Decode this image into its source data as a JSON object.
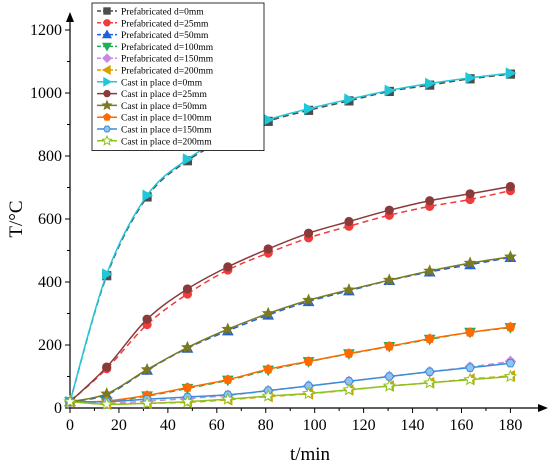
{
  "chart_data": {
    "type": "line",
    "xlabel": "t/min",
    "ylabel": "T/°C",
    "xlim": [
      0,
      188
    ],
    "ylim": [
      0,
      1200
    ],
    "xticks": [
      0,
      20,
      40,
      60,
      80,
      100,
      120,
      140,
      160,
      180
    ],
    "yticks": [
      0,
      200,
      400,
      600,
      800,
      1000,
      1200
    ],
    "x": [
      0,
      15,
      31.5,
      48,
      64.5,
      81,
      97.5,
      114,
      130.5,
      147,
      163.5,
      180
    ],
    "legend_position": "top-left",
    "series": [
      {
        "name": "Prefabricated d=0mm",
        "color": "#4d4d4d",
        "marker": "square",
        "dash": "dashed",
        "values": [
          20,
          420,
          670,
          785,
          855,
          910,
          945,
          975,
          1005,
          1025,
          1045,
          1060
        ]
      },
      {
        "name": "Prefabricated d=25mm",
        "color": "#f03c3c",
        "marker": "circle",
        "dash": "dashed",
        "values": [
          20,
          125,
          265,
          362,
          438,
          492,
          540,
          577,
          612,
          640,
          662,
          690
        ]
      },
      {
        "name": "Prefabricated d=50mm",
        "color": "#1f5fe0",
        "marker": "triangle-up",
        "dash": "dashed",
        "values": [
          20,
          42,
          120,
          190,
          245,
          295,
          338,
          372,
          405,
          432,
          455,
          478
        ]
      },
      {
        "name": "Prefabricated d=100mm",
        "color": "#1fae5a",
        "marker": "triangle-down",
        "dash": "dashed",
        "values": [
          20,
          20,
          38,
          62,
          88,
          120,
          147,
          172,
          195,
          218,
          240,
          255
        ]
      },
      {
        "name": "Prefabricated d=150mm",
        "color": "#c78ae0",
        "marker": "diamond",
        "dash": "dashed",
        "values": [
          20,
          15,
          22,
          30,
          40,
          55,
          70,
          85,
          100,
          115,
          130,
          148
        ]
      },
      {
        "name": "Prefabricated d=200mm",
        "color": "#d7a000",
        "marker": "triangle-left",
        "dash": "dashed",
        "values": [
          20,
          12,
          15,
          18,
          26,
          36,
          45,
          57,
          70,
          80,
          92,
          102
        ]
      },
      {
        "name": "Cast in place d=0mm",
        "color": "#1ec8d8",
        "marker": "triangle-right",
        "dash": "solid",
        "values": [
          20,
          425,
          675,
          790,
          862,
          915,
          950,
          980,
          1008,
          1030,
          1048,
          1063
        ]
      },
      {
        "name": "Cast in place d=25mm",
        "color": "#8b3a3a",
        "marker": "circle",
        "dash": "solid",
        "values": [
          20,
          130,
          282,
          378,
          448,
          505,
          555,
          592,
          628,
          658,
          680,
          703
        ]
      },
      {
        "name": "Cast in place d=50mm",
        "color": "#7a7a20",
        "marker": "star",
        "dash": "solid",
        "values": [
          20,
          45,
          122,
          192,
          250,
          300,
          342,
          375,
          406,
          435,
          460,
          480
        ]
      },
      {
        "name": "Cast in place d=100mm",
        "color": "#ff6a00",
        "marker": "pentagon",
        "dash": "solid",
        "values": [
          20,
          22,
          40,
          65,
          90,
          123,
          148,
          173,
          196,
          220,
          240,
          257
        ]
      },
      {
        "name": "Cast in place d=150mm",
        "color": "#3a8ed8",
        "marker": "hexagon",
        "dash": "solid",
        "values": [
          20,
          20,
          28,
          35,
          42,
          55,
          70,
          85,
          100,
          115,
          128,
          142
        ]
      },
      {
        "name": "Cast in place d=200mm",
        "color": "#8ec21e",
        "marker": "star-open",
        "dash": "solid",
        "values": [
          20,
          12,
          15,
          20,
          28,
          38,
          46,
          58,
          70,
          80,
          90,
          100
        ]
      }
    ]
  }
}
